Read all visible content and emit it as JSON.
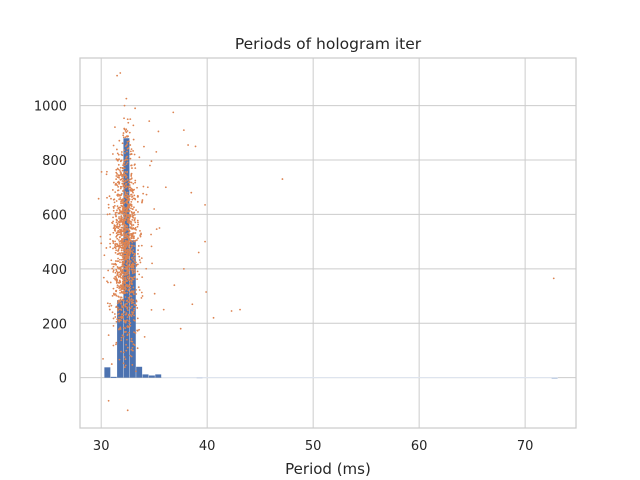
{
  "chart_data": {
    "type": "bar",
    "title": "Periods of hologram iter",
    "xlabel": "Period (ms)",
    "ylabel": "",
    "xlim": [
      28,
      74.8
    ],
    "ylim": [
      -185,
      1175
    ],
    "xticks": [
      30,
      40,
      50,
      60,
      70
    ],
    "yticks": [
      0,
      200,
      400,
      600,
      800,
      1000
    ],
    "grid": true,
    "colors": {
      "bars": "#4c72b0",
      "points": "#dd8452",
      "grid": "#cccccc",
      "spine": "#cccccc"
    },
    "series": [
      {
        "kind": "histogram",
        "bins": [
          {
            "x0": 30.3,
            "x1": 30.9,
            "value": 38
          },
          {
            "x0": 30.9,
            "x1": 31.5,
            "value": 3
          },
          {
            "x0": 31.5,
            "x1": 32.1,
            "value": 285
          },
          {
            "x0": 32.1,
            "x1": 32.7,
            "value": 880
          },
          {
            "x0": 32.7,
            "x1": 33.3,
            "value": 505
          },
          {
            "x0": 33.3,
            "x1": 33.9,
            "value": 40
          },
          {
            "x0": 33.9,
            "x1": 34.5,
            "value": 12
          },
          {
            "x0": 34.5,
            "x1": 35.1,
            "value": 8
          },
          {
            "x0": 35.1,
            "x1": 35.7,
            "value": 12
          },
          {
            "x0": 39.0,
            "x1": 39.6,
            "value": 2
          },
          {
            "x0": 72.5,
            "x1": 73.1,
            "value": 1
          }
        ]
      },
      {
        "kind": "scatter",
        "cluster": {
          "x_center": 32.3,
          "x_spread": 0.55,
          "y_center": 500,
          "y_spread": 180,
          "count": 1300
        },
        "points": [
          [
            31.5,
            1110
          ],
          [
            31.8,
            1120
          ],
          [
            32.2,
            1000
          ],
          [
            32.5,
            950
          ],
          [
            35.4,
            905
          ],
          [
            36.8,
            975
          ],
          [
            37.8,
            910
          ],
          [
            38.2,
            855
          ],
          [
            38.9,
            850
          ],
          [
            39.8,
            635
          ],
          [
            36.1,
            700
          ],
          [
            38.5,
            680
          ],
          [
            47.1,
            730
          ],
          [
            39.2,
            460
          ],
          [
            39.8,
            500
          ],
          [
            39.9,
            315
          ],
          [
            40.6,
            220
          ],
          [
            42.3,
            245
          ],
          [
            43.1,
            250
          ],
          [
            37.5,
            180
          ],
          [
            38.6,
            270
          ],
          [
            37.8,
            400
          ],
          [
            36.9,
            340
          ],
          [
            30.7,
            -85
          ],
          [
            32.5,
            -120
          ],
          [
            31.0,
            50
          ],
          [
            30.3,
            450
          ],
          [
            30.6,
            600
          ],
          [
            72.7,
            365
          ],
          [
            34.1,
            150
          ],
          [
            34.4,
            700
          ],
          [
            35.0,
            620
          ],
          [
            35.5,
            550
          ],
          [
            34.8,
            420
          ],
          [
            33.9,
            300
          ],
          [
            35.9,
            250
          ],
          [
            33.6,
            810
          ],
          [
            34.6,
            780
          ],
          [
            31.1,
            690
          ],
          [
            30.9,
            350
          ],
          [
            33.2,
            990
          ],
          [
            35.2,
            830
          ]
        ]
      }
    ]
  }
}
